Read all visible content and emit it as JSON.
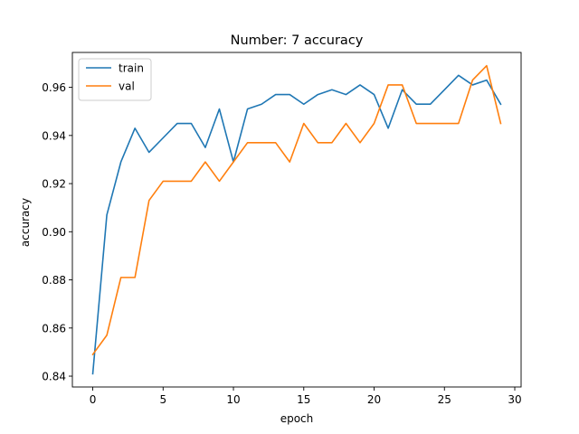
{
  "chart_data": {
    "type": "line",
    "title": "Number: 7 accuracy",
    "xlabel": "epoch",
    "ylabel": "accuracy",
    "xlim": [
      -1.45,
      30.45
    ],
    "ylim": [
      0.8355,
      0.9745
    ],
    "xticks": [
      0,
      5,
      10,
      15,
      20,
      25,
      30
    ],
    "xtick_labels": [
      "0",
      "5",
      "10",
      "15",
      "20",
      "25",
      "30"
    ],
    "yticks": [
      0.84,
      0.86,
      0.88,
      0.9,
      0.92,
      0.94,
      0.96
    ],
    "ytick_labels": [
      "0.84",
      "0.86",
      "0.88",
      "0.90",
      "0.92",
      "0.94",
      "0.96"
    ],
    "grid": false,
    "legend_position": "top-left",
    "x": [
      0,
      1,
      2,
      3,
      4,
      5,
      6,
      7,
      8,
      9,
      10,
      11,
      12,
      13,
      14,
      15,
      16,
      17,
      18,
      19,
      20,
      21,
      22,
      23,
      24,
      25,
      26,
      27,
      28,
      29
    ],
    "series": [
      {
        "name": "train",
        "color": "#1f77b4",
        "values": [
          0.841,
          0.907,
          0.929,
          0.943,
          0.933,
          0.939,
          0.945,
          0.945,
          0.935,
          0.951,
          0.929,
          0.951,
          0.953,
          0.957,
          0.957,
          0.953,
          0.957,
          0.959,
          0.957,
          0.961,
          0.957,
          0.943,
          0.959,
          0.953,
          0.953,
          0.959,
          0.965,
          0.961,
          0.963,
          0.953
        ]
      },
      {
        "name": "val",
        "color": "#ff7f0e",
        "values": [
          0.849,
          0.857,
          0.881,
          0.881,
          0.913,
          0.921,
          0.921,
          0.921,
          0.929,
          0.921,
          0.929,
          0.937,
          0.937,
          0.937,
          0.929,
          0.945,
          0.937,
          0.937,
          0.945,
          0.937,
          0.945,
          0.961,
          0.961,
          0.945,
          0.945,
          0.945,
          0.945,
          0.963,
          0.969,
          0.945
        ]
      }
    ]
  }
}
